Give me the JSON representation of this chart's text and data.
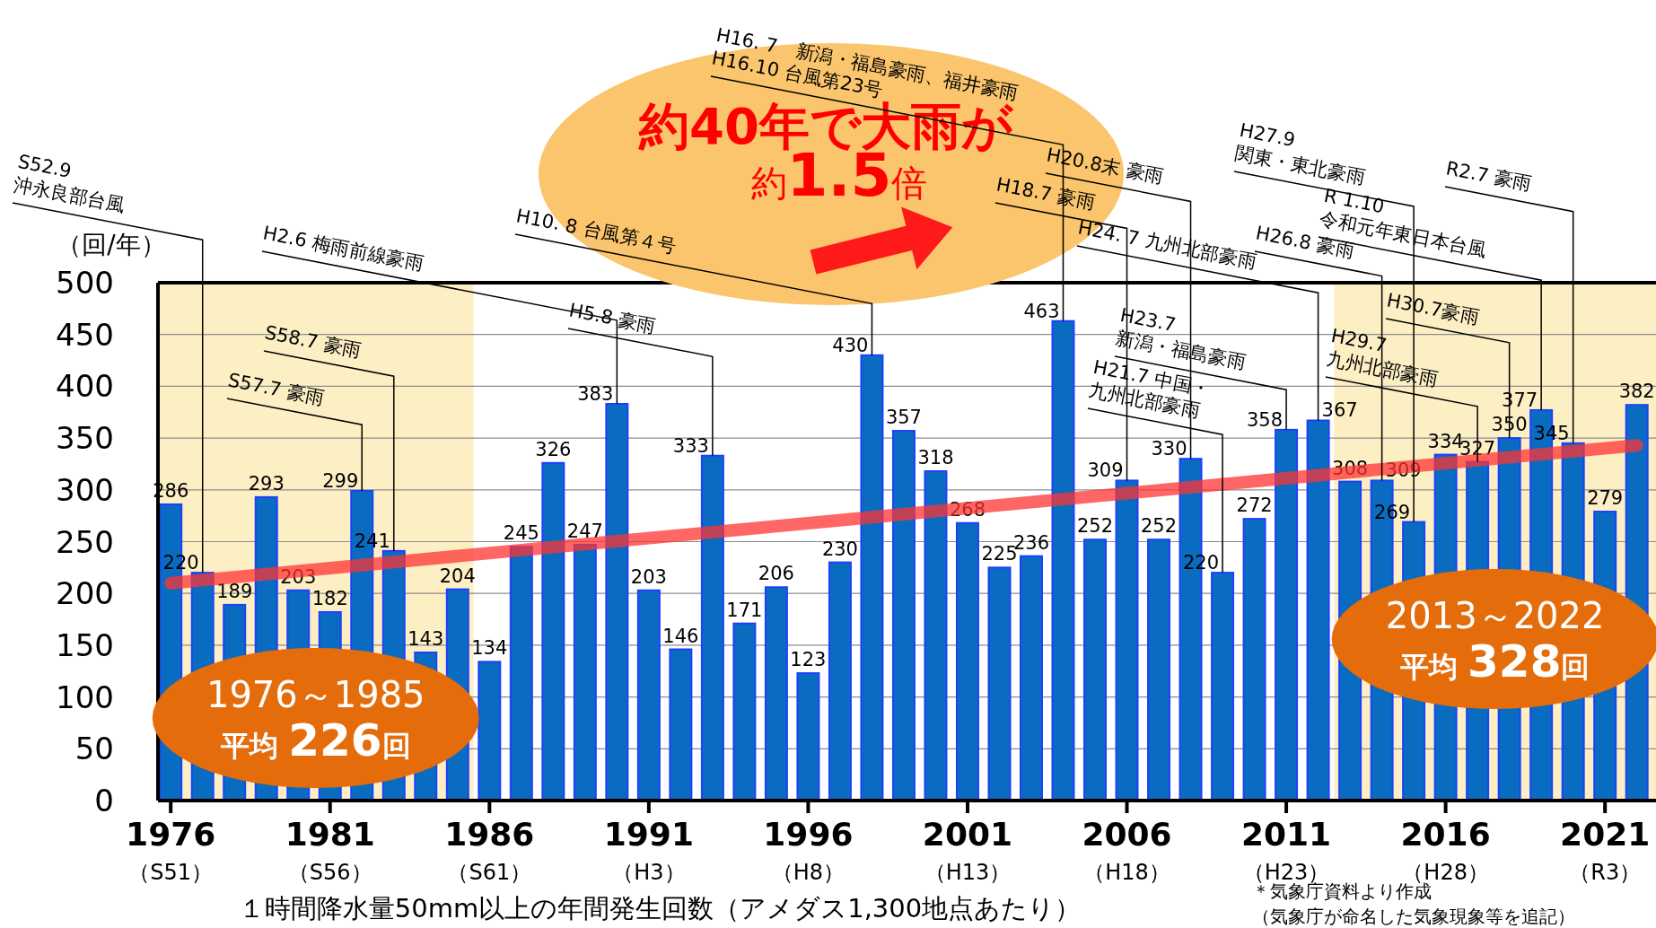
{
  "chart_data": {
    "type": "bar",
    "ylabel": "（回/年）",
    "xlabel": "１時間降水量50mm以上の年間発生回数（アメダス1,300地点あたり）",
    "x": [
      1976,
      1977,
      1978,
      1979,
      1980,
      1981,
      1982,
      1983,
      1984,
      1985,
      1986,
      1987,
      1988,
      1989,
      1990,
      1991,
      1992,
      1993,
      1994,
      1995,
      1996,
      1997,
      1998,
      1999,
      2000,
      2001,
      2002,
      2003,
      2004,
      2005,
      2006,
      2007,
      2008,
      2009,
      2010,
      2011,
      2012,
      2013,
      2014,
      2015,
      2016,
      2017,
      2018,
      2019,
      2020,
      2021,
      2022
    ],
    "series": [
      {
        "color": "#0a6cc0",
        "values": [
          286,
          220,
          189,
          293,
          203,
          182,
          299,
          241,
          143,
          204,
          134,
          245,
          326,
          247,
          383,
          203,
          146,
          333,
          171,
          206,
          123,
          230,
          430,
          357,
          318,
          268,
          225,
          236,
          463,
          252,
          309,
          252,
          330,
          220,
          272,
          358,
          367,
          308,
          309,
          269,
          334,
          327,
          350,
          377,
          345,
          279,
          382
        ],
        "value_labels": [
          "286",
          "220",
          "189",
          "293",
          "203",
          "182",
          "299",
          "241",
          "143",
          "204",
          "134",
          "245",
          "326",
          "247",
          "383",
          "203",
          "146",
          "333",
          "171",
          "206",
          "123",
          "230",
          "430",
          "357",
          "318",
          "268",
          "225",
          "236",
          "463",
          "252",
          "309",
          "252",
          "330",
          "220",
          "272",
          "358",
          "367",
          "308",
          "309",
          "269",
          "334",
          "327",
          "350",
          "377",
          "345",
          "279",
          "382"
        ]
      },
      {
        "type": "line",
        "color": "#ff3333",
        "x": [
          1976,
          2022
        ],
        "values": [
          210,
          343
        ]
      }
    ],
    "xlim": [
      1975.6,
      2022.6
    ],
    "ylim": [
      0,
      500
    ],
    "xticks": [
      1976,
      1981,
      1986,
      1991,
      1996,
      2001,
      2006,
      2011,
      2016,
      2021
    ],
    "yticks": [
      0,
      50,
      100,
      150,
      200,
      250,
      300,
      350,
      400,
      450,
      500
    ],
    "grid": "y",
    "bands": [
      {
        "axis": "x",
        "from": 1975.6,
        "to": 1985.5,
        "color": "#fdefc4",
        "label": "1976～1985\n平均 **226**回"
      },
      {
        "axis": "x",
        "from": 2012.5,
        "to": 2022.6,
        "color": "#fdefc4",
        "label": "2013～2022\n平均 **328**回"
      }
    ],
    "annotations": [
      "約40年で大雨が",
      "約**1.5**倍",
      "＊気象庁資料より作成",
      "（気象庁が命名した気象現象等を追記）",
      "（S51）",
      "（S56）",
      "（S61）",
      "（H3）",
      "（H8）",
      "（H13）",
      "（H18）",
      "（H23）",
      "（H28）",
      "（R3）",
      {
        "text": "S52.9\n沖永良部台風",
        "x": 1977,
        "y": 220
      },
      {
        "text": "S57.7 豪雨",
        "x": 1982,
        "y": 299
      },
      {
        "text": "S58.7 豪雨",
        "x": 1983,
        "y": 241
      },
      {
        "text": "H2.6 梅雨前線豪雨",
        "x": 1990,
        "y": 383
      },
      {
        "text": "H5.8 豪雨",
        "x": 1993,
        "y": 333
      },
      {
        "text": "H10. 8 台風第４号",
        "x": 1998,
        "y": 430
      },
      {
        "text": "H16. 7　新潟・福島豪雨、福井豪雨\nH16.10 台風第23号",
        "x": 2004,
        "y": 463
      },
      {
        "text": "H18.7 豪雨",
        "x": 2006,
        "y": 309
      },
      {
        "text": "H20.8末 豪雨",
        "x": 2008,
        "y": 330
      },
      {
        "text": "H21.7 中国・\n九州北部豪雨",
        "x": 2009,
        "y": 220
      },
      {
        "text": "H23.7\n新潟・福島豪雨",
        "x": 2011,
        "y": 358
      },
      {
        "text": "H24. 7 九州北部豪雨",
        "x": 2012,
        "y": 367
      },
      {
        "text": "H26.8 豪雨",
        "x": 2014,
        "y": 309
      },
      {
        "text": "H27.9\n関東・東北豪雨",
        "x": 2015,
        "y": 269
      },
      {
        "text": "H29.7\n九州北部豪雨",
        "x": 2017,
        "y": 327
      },
      {
        "text": "H30.7豪雨",
        "x": 2018,
        "y": 350
      },
      {
        "text": "R 1.10\n令和元年東日本台風",
        "x": 2019,
        "y": 377
      },
      {
        "text": "R2.7 豪雨",
        "x": 2020,
        "y": 345
      }
    ]
  }
}
